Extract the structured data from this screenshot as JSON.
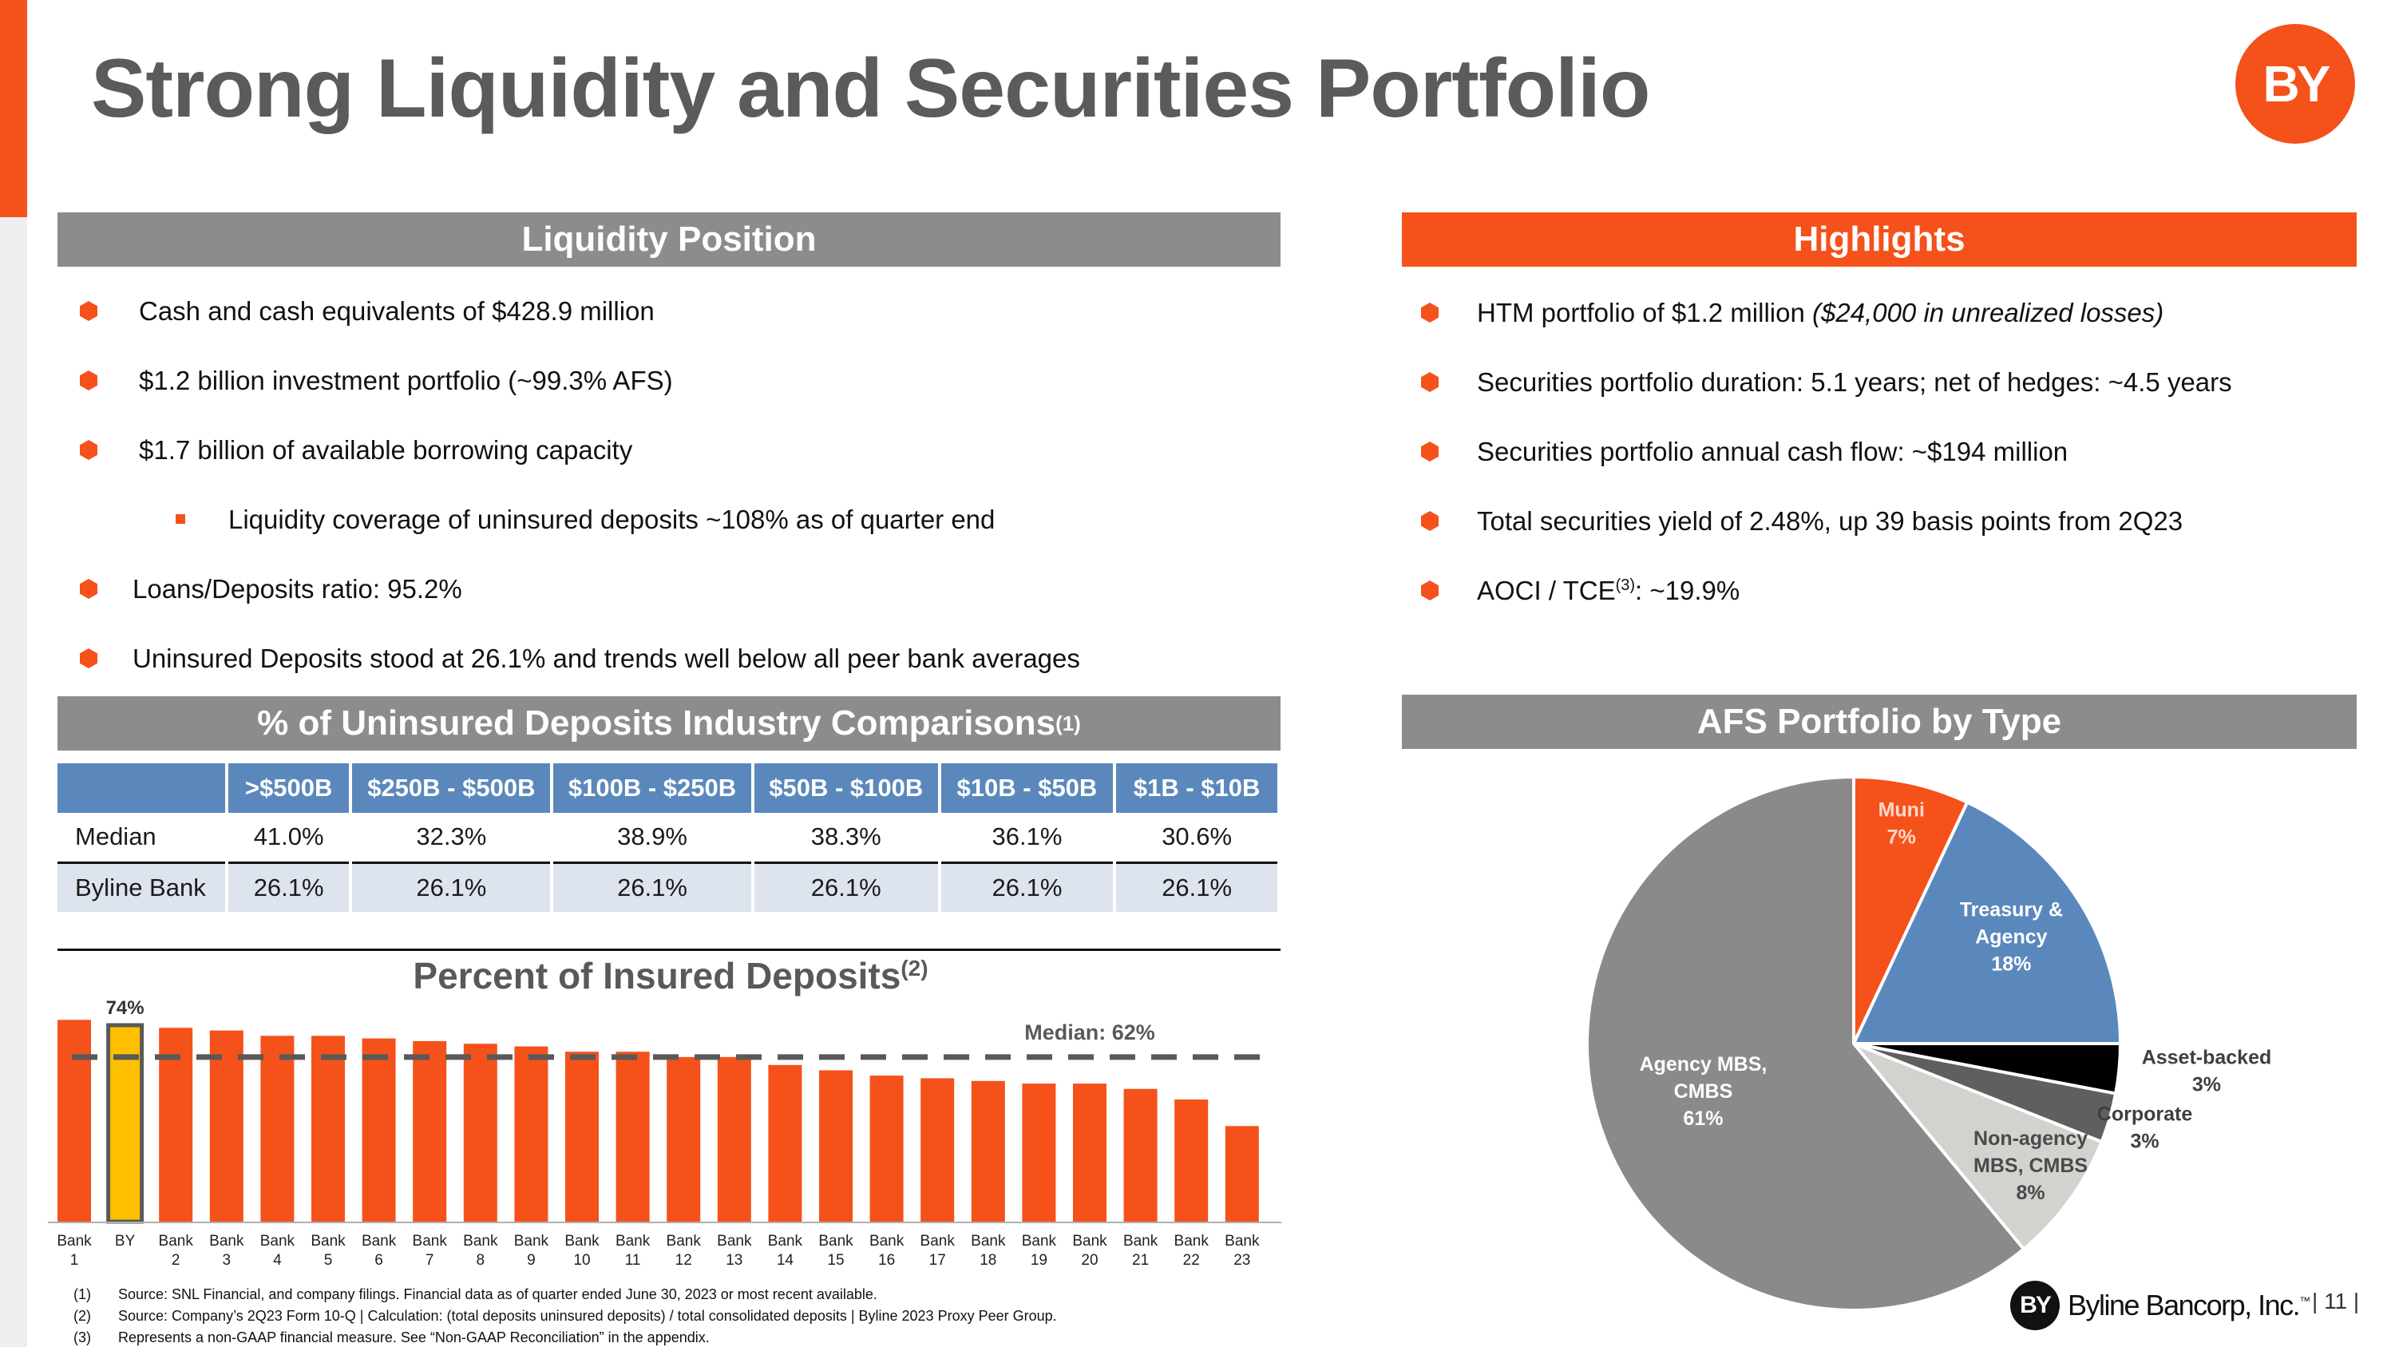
{
  "title": "Strong Liquidity and Securities Portfolio",
  "logo_text": "BY",
  "liquidity": {
    "header": "Liquidity Position",
    "items": [
      "Cash and cash equivalents of $428.9 million",
      "$1.2 billion investment portfolio (~99.3% AFS)",
      "$1.7 billion of available borrowing capacity",
      "Liquidity coverage of uninsured deposits ~108% as of quarter end",
      "Loans/Deposits ratio: 95.2%",
      "Uninsured Deposits stood at 26.1% and trends well below all peer bank averages"
    ]
  },
  "highlights": {
    "header": "Highlights",
    "item1_main": "HTM portfolio of $1.2 million ",
    "item1_italic": "($24,000 in unrealized losses)",
    "item2": "Securities portfolio duration: 5.1 years; net of hedges: ~4.5 years",
    "item3": "Securities portfolio annual cash flow: ~$194 million",
    "item4": "Total securities yield of 2.48%, up 39 basis points from 2Q23",
    "item5_pre": "AOCI / TCE",
    "item5_sup": "(3)",
    "item5_post": ": ~19.9%"
  },
  "comparison": {
    "header": "% of Uninsured Deposits Industry Comparisons",
    "header_sup": "(1)",
    "columns": [
      ">$500B",
      "$250B - $500B",
      "$100B - $250B",
      "$50B - $100B",
      "$10B - $50B",
      "$1B - $10B"
    ],
    "rows": [
      {
        "label": "Median",
        "values": [
          "41.0%",
          "32.3%",
          "38.9%",
          "38.3%",
          "36.1%",
          "30.6%"
        ]
      },
      {
        "label": "Byline Bank",
        "values": [
          "26.1%",
          "26.1%",
          "26.1%",
          "26.1%",
          "26.1%",
          "26.1%"
        ]
      }
    ]
  },
  "afs_header": "AFS Portfolio by Type",
  "chart_data": [
    {
      "type": "bar",
      "title": "Percent of Insured Deposits",
      "title_sup": "(2)",
      "categories": [
        "Bank 1",
        "BY",
        "Bank 2",
        "Bank 3",
        "Bank 4",
        "Bank 5",
        "Bank 6",
        "Bank 7",
        "Bank 8",
        "Bank 9",
        "Bank 10",
        "Bank 11",
        "Bank 12",
        "Bank 13",
        "Bank 14",
        "Bank 15",
        "Bank 16",
        "Bank 17",
        "Bank 18",
        "Bank 19",
        "Bank 20",
        "Bank 21",
        "Bank 22",
        "Bank 23"
      ],
      "values": [
        76,
        74,
        73,
        72,
        70,
        70,
        69,
        68,
        67,
        66,
        64,
        64,
        62,
        62,
        59,
        57,
        55,
        54,
        53,
        52,
        52,
        50,
        46,
        36
      ],
      "highlight_category": "BY",
      "highlight_label": "74%",
      "median": 62,
      "median_label": "Median: 62%",
      "ylim": [
        0,
        80
      ],
      "colors": {
        "bar": "#f5511a",
        "highlight": "#ffc000",
        "highlight_border": "#5a5a5a",
        "median_line": "#595959"
      }
    },
    {
      "type": "pie",
      "slices": [
        {
          "label": "Muni",
          "value": 7,
          "value_label": "7%",
          "color": "#f5511a"
        },
        {
          "label": "Treasury & Agency",
          "value": 18,
          "value_label": "18%",
          "color": "#5b88bc"
        },
        {
          "label": "Asset-backed",
          "value": 3,
          "value_label": "3%",
          "color": "#000000"
        },
        {
          "label": "Corporate",
          "value": 3,
          "value_label": "3%",
          "color": "#5f5f5f"
        },
        {
          "label": "Non-agency MBS, CMBS",
          "value": 8,
          "value_label": "8%",
          "color": "#d1d3cf"
        },
        {
          "label": "Agency MBS, CMBS",
          "value": 61,
          "value_label": "61%",
          "color": "#8a8a8a"
        }
      ]
    }
  ],
  "footnotes": [
    {
      "num": "(1)",
      "text": "Source: SNL Financial, and company filings. Financial data as of quarter ended June 30, 2023 or most recent available."
    },
    {
      "num": "(2)",
      "text": "Source: Company’s 2Q23 Form 10-Q | Calculation: (total deposits uninsured deposits) / total consolidated deposits | Byline 2023 Proxy Peer Group."
    },
    {
      "num": "(3)",
      "text": "Represents a non-GAAP financial measure.  See “Non-GAAP Reconciliation” in the appendix."
    }
  ],
  "footer": {
    "logo_mark": "BY",
    "company": "Byline Bancorp, Inc.",
    "tm": "™",
    "page": "11"
  }
}
